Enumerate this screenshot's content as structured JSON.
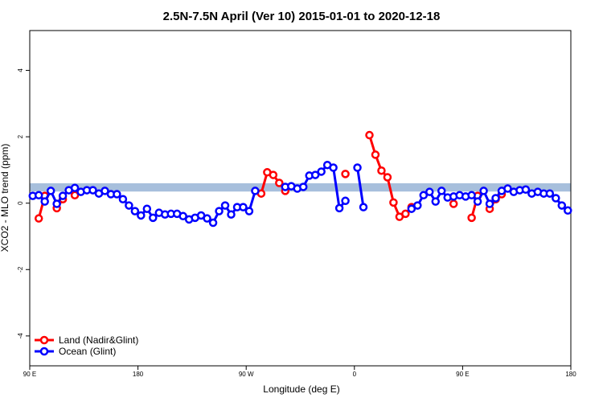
{
  "chart_data": {
    "type": "line",
    "title": "2.5N-7.5N April (Ver 10)   2015-01-01 to 2020-12-18",
    "x_label": "Longitude (deg E)",
    "y_label": "XCO2 - MLO trend (ppm)",
    "xlim": [
      90,
      540
    ],
    "ylim": [
      -4.9,
      5.2
    ],
    "xticks": [
      {
        "value": 90,
        "label": "90 E"
      },
      {
        "value": 180,
        "label": "180"
      },
      {
        "value": 270,
        "label": "90 W"
      },
      {
        "value": 360,
        "label": "0"
      },
      {
        "value": 450,
        "label": "90 E"
      },
      {
        "value": 540,
        "label": "180"
      }
    ],
    "yticks": [
      -4,
      -2,
      0,
      2,
      4
    ],
    "band": {
      "ylim": [
        0.35,
        0.6
      ],
      "color": "#a7bfdc"
    },
    "legend": "bottom-left",
    "x": [
      92.5,
      97.5,
      102.5,
      107.5,
      112.5,
      117.5,
      122.5,
      127.5,
      132.5,
      137.5,
      142.5,
      147.5,
      152.5,
      157.5,
      162.5,
      167.5,
      172.5,
      177.5,
      182.5,
      187.5,
      192.5,
      197.5,
      202.5,
      207.5,
      212.5,
      217.5,
      222.5,
      227.5,
      232.5,
      237.5,
      242.5,
      247.5,
      252.5,
      257.5,
      262.5,
      267.5,
      272.5,
      277.5,
      282.5,
      287.5,
      292.5,
      297.5,
      302.5,
      307.5,
      312.5,
      317.5,
      322.5,
      327.5,
      332.5,
      337.5,
      342.5,
      347.5,
      352.5,
      357.5,
      362.5,
      367.5,
      372.5,
      377.5,
      382.5,
      387.5,
      392.5,
      397.5,
      402.5,
      407.5,
      412.5,
      417.5,
      422.5,
      427.5,
      432.5,
      437.5,
      442.5,
      447.5,
      452.5,
      457.5,
      462.5,
      467.5,
      472.5,
      477.5,
      482.5,
      487.5,
      492.5,
      497.5,
      502.5,
      507.5,
      512.5,
      517.5,
      522.5,
      527.5,
      532.5,
      537.5
    ],
    "series": [
      {
        "name": "Land (Nadir&Glint)",
        "color": "#ff0000",
        "values": [
          null,
          -0.46,
          0.22,
          null,
          -0.15,
          0.12,
          null,
          0.24,
          null,
          null,
          null,
          null,
          null,
          null,
          null,
          null,
          null,
          null,
          null,
          null,
          null,
          null,
          null,
          null,
          null,
          null,
          null,
          null,
          null,
          null,
          null,
          null,
          null,
          null,
          null,
          null,
          null,
          null,
          0.29,
          0.93,
          0.85,
          0.61,
          0.37,
          null,
          null,
          null,
          null,
          null,
          null,
          null,
          null,
          null,
          0.88,
          null,
          null,
          null,
          2.05,
          1.46,
          0.98,
          0.78,
          0.02,
          -0.41,
          -0.32,
          -0.12,
          null,
          null,
          null,
          null,
          null,
          null,
          -0.02,
          null,
          null,
          -0.44,
          0.22,
          null,
          -0.17,
          0.12,
          0.27,
          null,
          null,
          null,
          null,
          null,
          null,
          null,
          null,
          null,
          null,
          null
        ]
      },
      {
        "name": "Ocean (Glint)",
        "color": "#0000ff",
        "values": [
          0.22,
          0.24,
          0.05,
          0.37,
          -0.02,
          0.22,
          0.39,
          0.46,
          0.34,
          0.39,
          0.39,
          0.29,
          0.37,
          0.27,
          0.27,
          0.12,
          -0.07,
          -0.24,
          -0.37,
          -0.17,
          -0.44,
          -0.29,
          -0.34,
          -0.32,
          -0.32,
          -0.39,
          -0.49,
          -0.44,
          -0.37,
          -0.46,
          -0.59,
          -0.24,
          -0.07,
          -0.34,
          -0.12,
          -0.12,
          -0.24,
          0.37,
          null,
          null,
          null,
          null,
          0.49,
          0.51,
          0.44,
          0.49,
          0.83,
          0.85,
          0.95,
          1.15,
          1.07,
          -0.15,
          0.07,
          null,
          1.07,
          -0.12,
          null,
          null,
          null,
          null,
          null,
          null,
          null,
          -0.17,
          -0.07,
          0.24,
          0.34,
          0.05,
          0.37,
          0.17,
          0.2,
          0.24,
          0.2,
          0.24,
          0.05,
          0.37,
          -0.02,
          0.15,
          0.37,
          0.44,
          0.34,
          0.39,
          0.41,
          0.29,
          0.34,
          0.29,
          0.29,
          0.15,
          -0.07,
          -0.22
        ]
      }
    ]
  }
}
